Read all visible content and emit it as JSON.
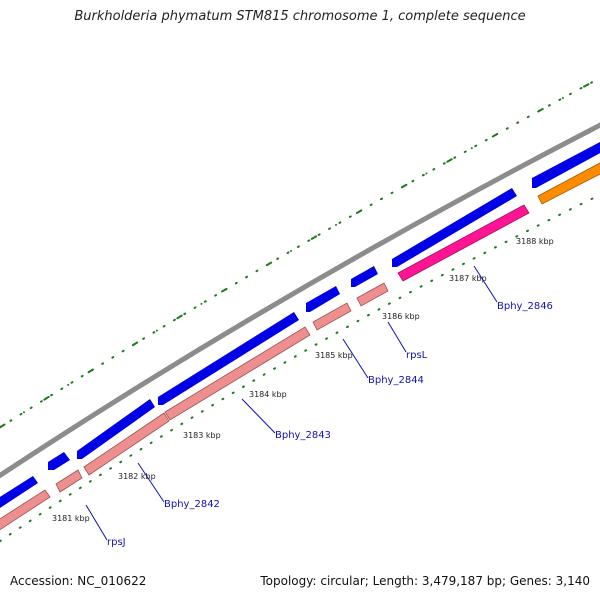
{
  "header": {
    "title": "Burkholderia phymatum STM815 chromosome 1, complete sequence"
  },
  "footer": {
    "accession": "Accession: NC_010622",
    "summary": "Topology: circular; Length: 3,479,187 bp; Genes: 3,140"
  },
  "colors": {
    "backbone": "#8c8c8c",
    "forward_gene": "#0000e6",
    "reverse_gene": "#ee8f8f",
    "highlight_gene": "#ff1493",
    "other_gene": "#ff8c00",
    "ticks": "#1e7a1e",
    "label": "#1010b0"
  },
  "ruler": {
    "ticks": [
      "3181 kbp",
      "3182 kbp",
      "3183 kbp",
      "3184 kbp",
      "3185 kbp",
      "3186 kbp",
      "3187 kbp",
      "3188 kbp"
    ]
  },
  "gene_labels": [
    "rpsJ",
    "Bphy_2842",
    "Bphy_2843",
    "Bphy_2844",
    "rpsL",
    "Bphy_2846"
  ]
}
